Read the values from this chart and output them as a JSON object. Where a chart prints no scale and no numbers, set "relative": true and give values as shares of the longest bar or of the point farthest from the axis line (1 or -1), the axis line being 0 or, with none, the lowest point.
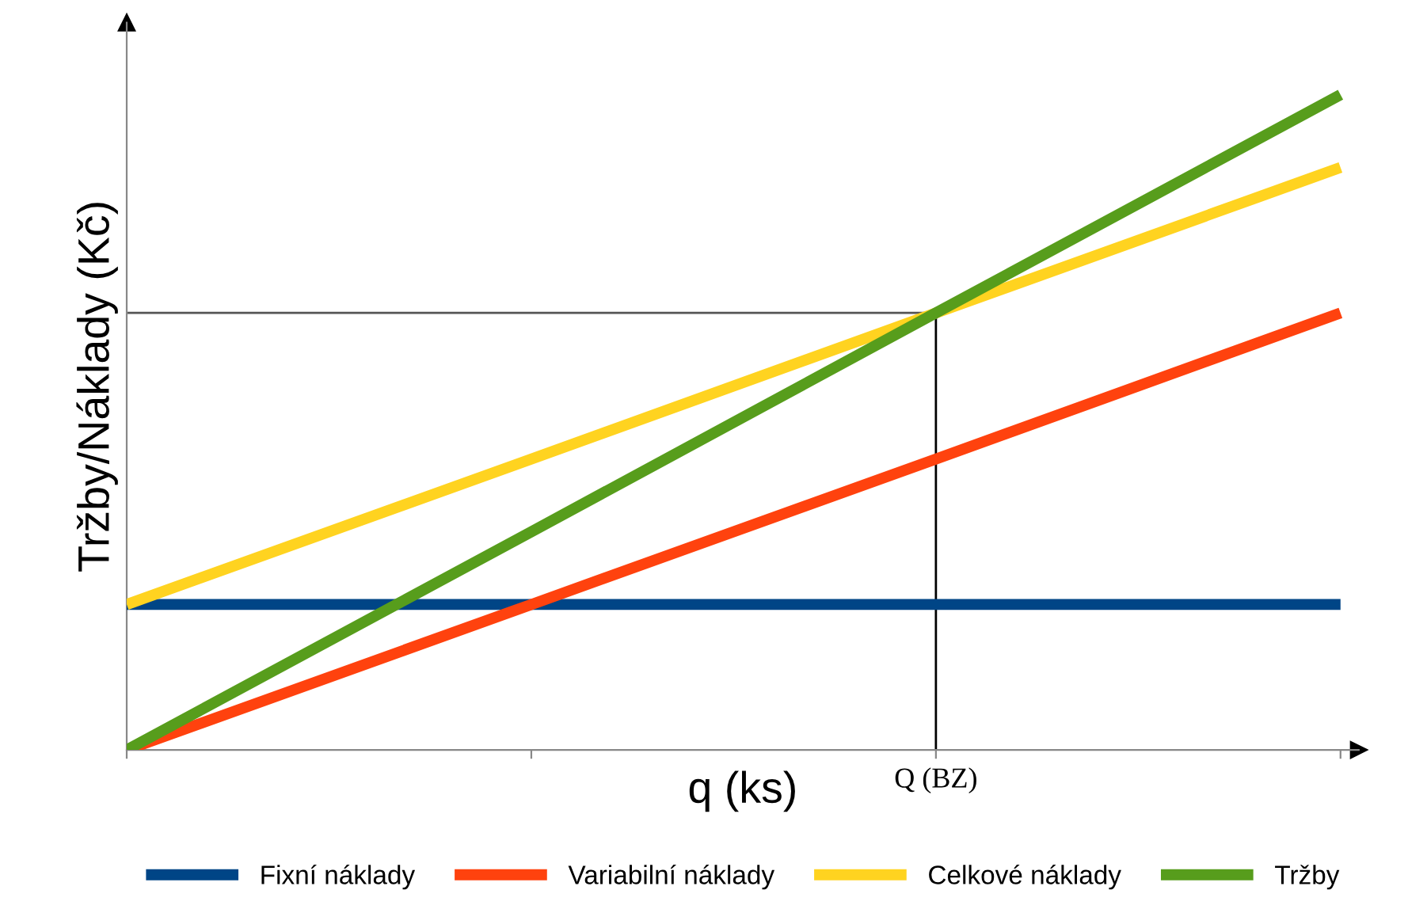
{
  "chart_data": {
    "type": "line",
    "relative": true,
    "xlabel": "q (ks)",
    "ylabel": "Tržby/Náklady (Kč)",
    "categories": [
      null,
      null,
      null,
      null
    ],
    "series": [
      {
        "name": "Fixní náklady",
        "color": "#004586",
        "values": [
          0.222,
          0.222,
          0.222,
          0.222
        ]
      },
      {
        "name": "Variabilní náklady",
        "color": "#ff420e",
        "values": [
          0,
          0.222,
          0.444,
          0.667
        ]
      },
      {
        "name": "Celkové náklady",
        "color": "#ffd320",
        "values": [
          0.222,
          0.444,
          0.667,
          0.889
        ]
      },
      {
        "name": "Tržby",
        "color": "#579d1c",
        "values": [
          0,
          0.333,
          0.667,
          1
        ]
      }
    ],
    "ref_lines": [
      {
        "axis": "y",
        "value": 0.667,
        "color": "#555555"
      },
      {
        "axis": "x",
        "label": "Q (BZ)",
        "color": "#000000"
      }
    ],
    "legend": "bottom",
    "grid": false,
    "marker": "none",
    "line_style": "solid"
  }
}
